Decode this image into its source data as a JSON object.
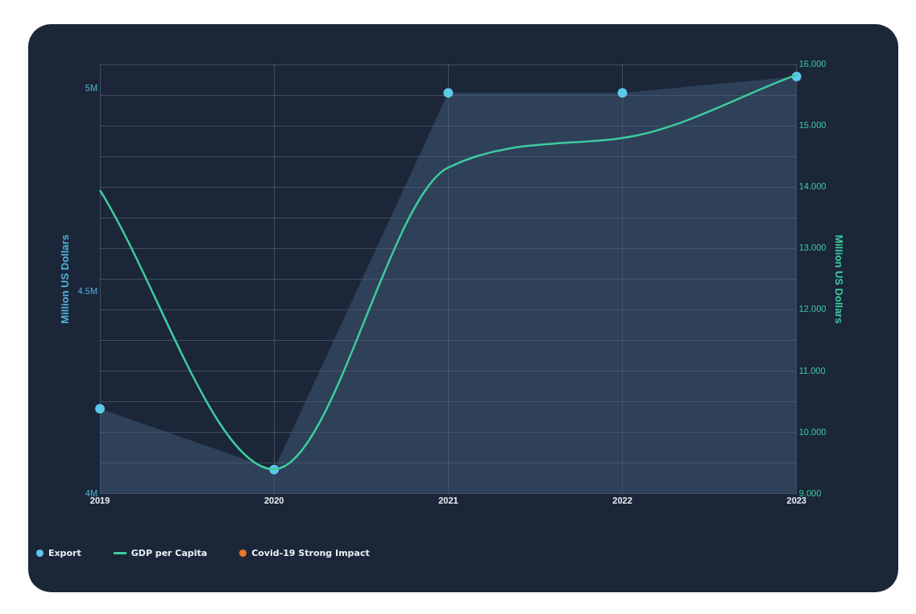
{
  "chart_data": {
    "type": "line",
    "categories": [
      "2019",
      "2020",
      "2021",
      "2022",
      "2023"
    ],
    "series": [
      {
        "name": "Export",
        "type": "area",
        "axis": "y",
        "color": "#5cc8ea",
        "marker": "circle",
        "values": [
          4.21,
          4.06,
          4.99,
          4.99,
          5.03
        ]
      },
      {
        "name": "GDP per Capita",
        "type": "line",
        "axis": "y2",
        "color": "#3ecb9f",
        "marker": "none",
        "values": [
          13.95,
          9.4,
          14.32,
          14.8,
          15.83
        ]
      }
    ],
    "ylabel": "Million US Dollars",
    "y2label": "Million US Dollars",
    "ylim": [
      4,
      5.06
    ],
    "yticks": [
      {
        "value": 4,
        "label": "4M"
      },
      {
        "value": 4.5,
        "label": "4.5M"
      },
      {
        "value": 5,
        "label": "5M"
      }
    ],
    "y2lim": [
      9,
      16
    ],
    "y2ticks": [
      {
        "value": 9,
        "label": "9.000"
      },
      {
        "value": 9.5,
        "label": null
      },
      {
        "value": 10,
        "label": "10.000"
      },
      {
        "value": 10.5,
        "label": null
      },
      {
        "value": 11,
        "label": "11.000"
      },
      {
        "value": 11.5,
        "label": null
      },
      {
        "value": 12,
        "label": "12.000"
      },
      {
        "value": 12.5,
        "label": null
      },
      {
        "value": 13,
        "label": "13.000"
      },
      {
        "value": 13.5,
        "label": null
      },
      {
        "value": 14,
        "label": "14.000"
      },
      {
        "value": 14.5,
        "label": null
      },
      {
        "value": 15,
        "label": "15.000"
      },
      {
        "value": 15.5,
        "label": null
      },
      {
        "value": 16,
        "label": "16.000"
      }
    ],
    "grid": true,
    "legend": "bottom left",
    "annotations": [
      "Covid-19 Strong Impact"
    ]
  }
}
